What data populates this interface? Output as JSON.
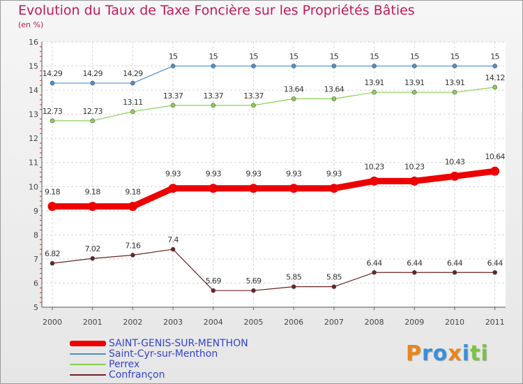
{
  "title": "Evolution du Taux de Taxe Foncière sur les Propriétés Bâties",
  "subtitle": "(en %)",
  "logo": {
    "letters": [
      "P",
      "r",
      "o",
      "x",
      "i",
      "t",
      "i"
    ],
    "colors": [
      "#e8861a",
      "#3a8fd8",
      "#3a8fd8",
      "#e8861a",
      "#3a8fd8",
      "#7cc242",
      "#7cc242"
    ]
  },
  "chart_data": {
    "type": "line",
    "x": [
      "2000",
      "2001",
      "2002",
      "2003",
      "2004",
      "2005",
      "2006",
      "2007",
      "2008",
      "2009",
      "2010",
      "2011"
    ],
    "ylim": [
      5,
      16
    ],
    "yticks": [
      "5",
      "6",
      "7",
      "8",
      "9",
      "10",
      "11",
      "12",
      "13",
      "14",
      "15",
      "16"
    ],
    "grid": true,
    "legend_position": "bottom-left",
    "series": [
      {
        "name": "SAINT-GENIS-SUR-MENTHON",
        "color": "#ee0000",
        "emphasis": true,
        "values": [
          9.18,
          9.18,
          9.18,
          9.93,
          9.93,
          9.93,
          9.93,
          9.93,
          10.23,
          10.23,
          10.43,
          10.64
        ],
        "labels": [
          "9.18",
          "9.18",
          "9.18",
          "9.93",
          "9.93",
          "9.93",
          "9.93",
          "9.93",
          "10.23",
          "10.23",
          "10.43",
          "10.64"
        ]
      },
      {
        "name": "Saint-Cyr-sur-Menthon",
        "color": "#4a90d0",
        "emphasis": false,
        "values": [
          14.29,
          14.29,
          14.29,
          15,
          15,
          15,
          15,
          15,
          15,
          15,
          15,
          15
        ],
        "labels": [
          "14.29",
          "14.29",
          "14.29",
          "15",
          "15",
          "15",
          "15",
          "15",
          "15",
          "15",
          "15",
          "15"
        ]
      },
      {
        "name": "Perrex",
        "color": "#88d050",
        "emphasis": false,
        "values": [
          12.73,
          12.73,
          13.11,
          13.37,
          13.37,
          13.37,
          13.64,
          13.64,
          13.91,
          13.91,
          13.91,
          14.12
        ],
        "labels": [
          "12.73",
          "12.73",
          "13.11",
          "13.37",
          "13.37",
          "13.37",
          "13.64",
          "13.64",
          "13.91",
          "13.91",
          "13.91",
          "14.12"
        ]
      },
      {
        "name": "Confrançon",
        "color": "#6b2222",
        "emphasis": false,
        "values": [
          6.82,
          7.02,
          7.16,
          7.4,
          5.69,
          5.69,
          5.85,
          5.85,
          6.44,
          6.44,
          6.44,
          6.44
        ],
        "labels": [
          "6.82",
          "7.02",
          "7.16",
          "7.4",
          "5.69",
          "5.69",
          "5.85",
          "5.85",
          "6.44",
          "6.44",
          "6.44",
          "6.44"
        ]
      }
    ]
  }
}
